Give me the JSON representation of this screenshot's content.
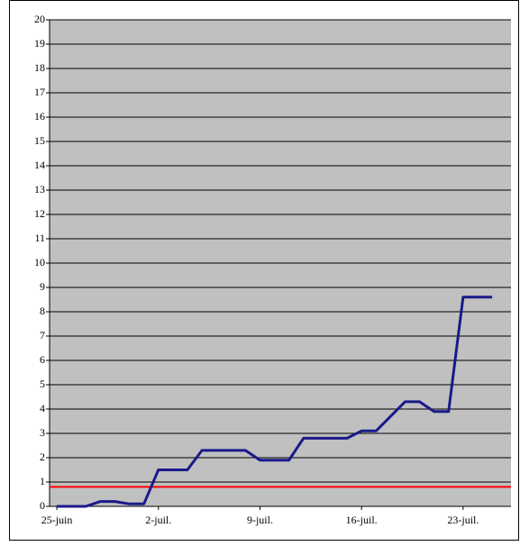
{
  "chart_data": {
    "type": "line",
    "x": [
      0,
      2,
      3,
      4,
      5,
      6,
      7,
      9,
      10,
      13,
      14,
      16,
      17,
      20,
      21,
      22,
      24,
      25,
      26,
      27,
      28,
      30
    ],
    "series": [
      {
        "name": null,
        "color": "#1a1a8c",
        "values": [
          0,
          0,
          0.2,
          0.2,
          0.1,
          0.1,
          1.5,
          1.5,
          2.3,
          2.3,
          1.9,
          1.9,
          2.8,
          2.8,
          3.1,
          3.1,
          4.3,
          4.3,
          3.9,
          3.9,
          8.6,
          8.6
        ]
      }
    ],
    "reference_line": {
      "value": 0.8,
      "color": "#ff0000"
    },
    "xlim": [
      -0.5,
      31.3
    ],
    "xticks": [
      {
        "value": 0,
        "label": "25-juin"
      },
      {
        "value": 7,
        "label": "2-juil."
      },
      {
        "value": 14,
        "label": "9-juil."
      },
      {
        "value": 21,
        "label": "16-juil."
      },
      {
        "value": 28,
        "label": "23-juil."
      }
    ],
    "ylim": [
      0,
      20
    ],
    "yticks": [
      0,
      1,
      2,
      3,
      4,
      5,
      6,
      7,
      8,
      9,
      10,
      11,
      12,
      13,
      14,
      15,
      16,
      17,
      18,
      19,
      20
    ],
    "grid": true,
    "background": "#c0c0c0"
  }
}
